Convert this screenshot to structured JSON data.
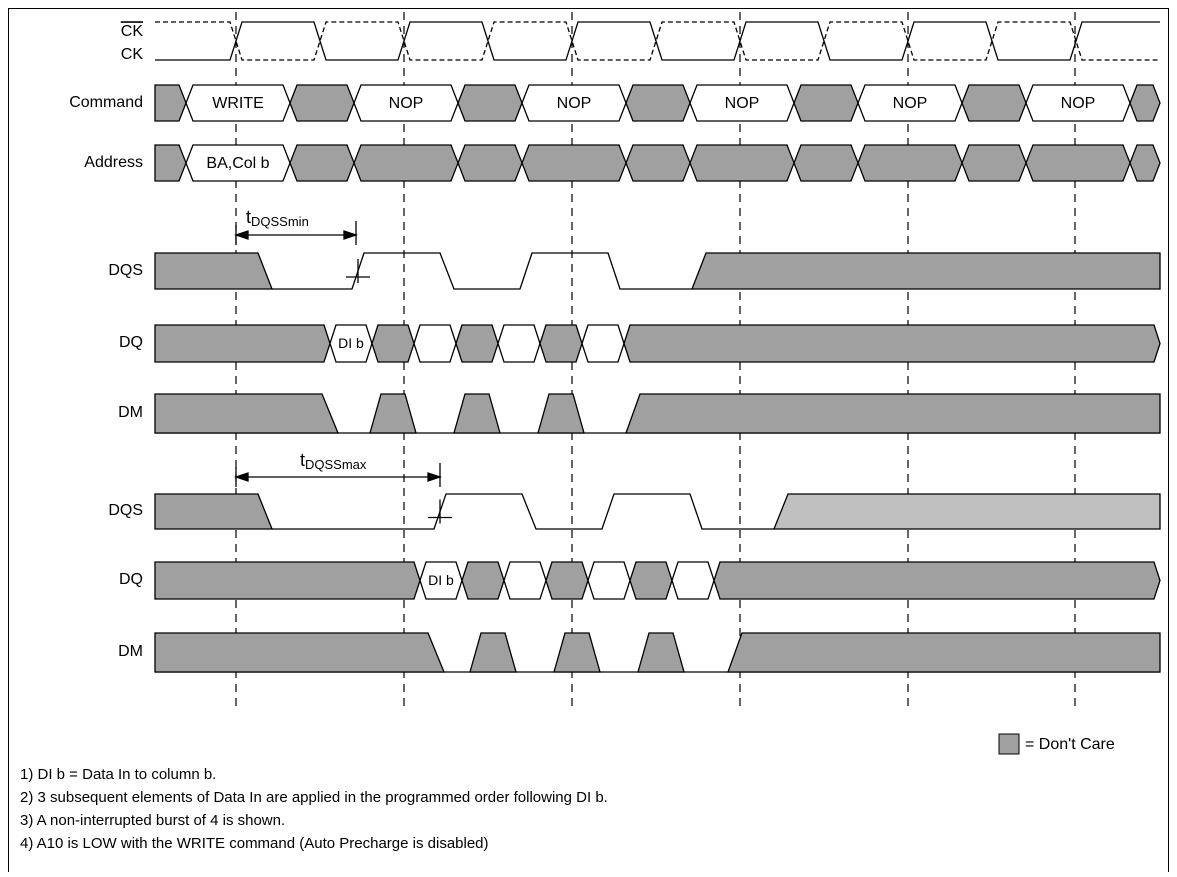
{
  "signals": [
    "CK",
    "CK",
    "Command",
    "Address",
    "DQS",
    "DQ",
    "DM",
    "DQS",
    "DQ",
    "DM"
  ],
  "commands": [
    "WRITE",
    "NOP",
    "NOP",
    "NOP",
    "NOP",
    "NOP"
  ],
  "address": "BA,Col b",
  "data_in": [
    "DI b",
    "DI b"
  ],
  "timing_min": {
    "base": "t",
    "sub": "DQSSmin"
  },
  "timing_max": {
    "base": "t",
    "sub": "DQSSmax"
  },
  "legend": "= Don't Care",
  "notes": [
    "1) DI b = Data In to column b.",
    "2) 3 subsequent elements of Data In are applied in the programmed order following DI b.",
    "3) A non-interrupted burst of 4 is shown.",
    "4) A10 is LOW with the WRITE command (Auto Precharge is disabled)"
  ]
}
